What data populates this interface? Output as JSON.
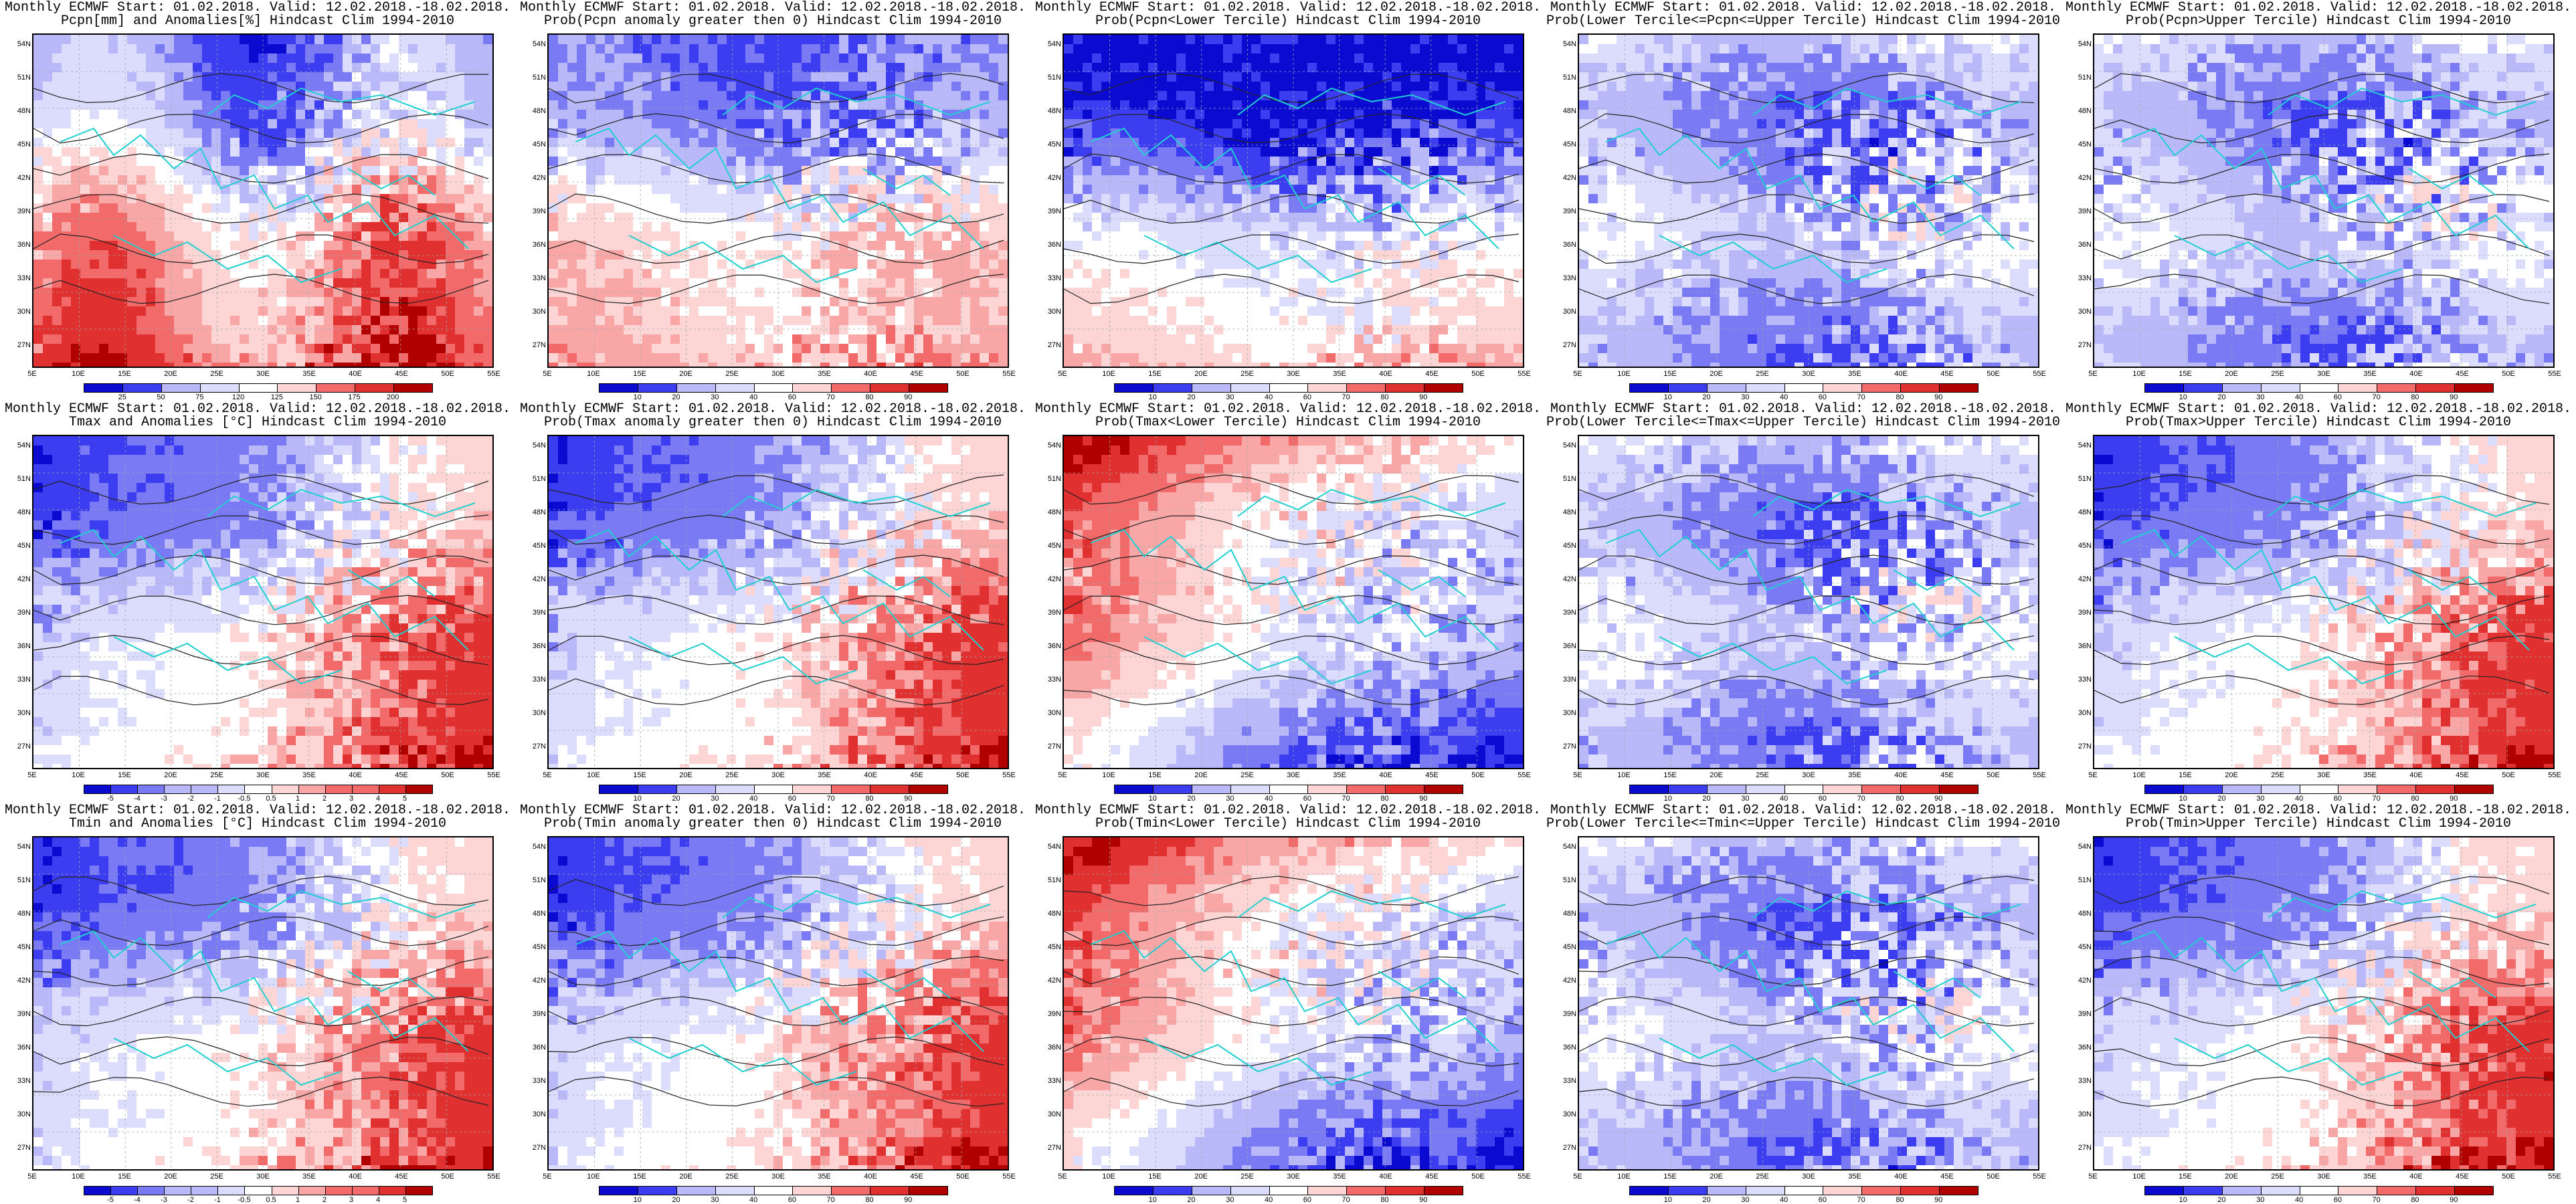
{
  "panels": [
    {
      "title1": "Monthly ECMWF Start: 01.02.2018. Valid: 12.02.2018.-18.02.2018.",
      "title2": "Pcpn[mm] and Anomalies[%] Hindcast Clim 1994-2010",
      "scheme": "anom",
      "colorbar": [
        "25",
        "50",
        "75",
        "120",
        "125",
        "150",
        "175",
        "200"
      ]
    },
    {
      "title1": "Monthly ECMWF Start: 01.02.2018. Valid: 12.02.2018.-18.02.2018.",
      "title2": "Prob(Pcpn anomaly greater then 0) Hindcast Clim 1994-2010",
      "scheme": "probwarm",
      "colorbar": [
        "10",
        "20",
        "30",
        "40",
        "60",
        "70",
        "80",
        "90"
      ]
    },
    {
      "title1": "Monthly ECMWF Start: 01.02.2018. Valid: 12.02.2018.-18.02.2018.",
      "title2": "Prob(Pcpn<Lower Tercile) Hindcast Clim 1994-2010",
      "scheme": "probcold",
      "colorbar": [
        "10",
        "20",
        "30",
        "40",
        "60",
        "70",
        "80",
        "90"
      ]
    },
    {
      "title1": "Monthly ECMWF Start: 01.02.2018. Valid: 12.02.2018.-18.02.2018.",
      "title2": "Prob(Lower Tercile<=Pcpn<=Upper Tercile) Hindcast Clim 1994-2010",
      "scheme": "mid",
      "colorbar": [
        "10",
        "20",
        "30",
        "40",
        "60",
        "70",
        "80",
        "90"
      ]
    },
    {
      "title1": "Monthly ECMWF Start: 01.02.2018. Valid: 12.02.2018.-18.02.2018.",
      "title2": "Prob(Pcpn>Upper Tercile) Hindcast Clim 1994-2010",
      "scheme": "mid",
      "colorbar": [
        "10",
        "20",
        "30",
        "40",
        "60",
        "70",
        "80",
        "90"
      ]
    },
    {
      "title1": "Monthly ECMWF Start: 01.02.2018. Valid: 12.02.2018.-18.02.2018.",
      "title2": "Tmax and Anomalies [°C] Hindcast Clim 1994-2010",
      "scheme": "warm",
      "colorbar": [
        "-5",
        "-4",
        "-3",
        "-2",
        "-1",
        "-0.5",
        "0.5",
        "1",
        "2",
        "3",
        "4",
        "5"
      ]
    },
    {
      "title1": "Monthly ECMWF Start: 01.02.2018. Valid: 12.02.2018.-18.02.2018.",
      "title2": "Prob(Tmax anomaly greater then 0) Hindcast Clim 1994-2010",
      "scheme": "warm",
      "colorbar": [
        "10",
        "20",
        "30",
        "40",
        "60",
        "70",
        "80",
        "90"
      ]
    },
    {
      "title1": "Monthly ECMWF Start: 01.02.2018. Valid: 12.02.2018.-18.02.2018.",
      "title2": "Prob(Tmax<Lower Tercile) Hindcast Clim 1994-2010",
      "scheme": "cold",
      "colorbar": [
        "10",
        "20",
        "30",
        "40",
        "60",
        "70",
        "80",
        "90"
      ]
    },
    {
      "title1": "Monthly ECMWF Start: 01.02.2018. Valid: 12.02.2018.-18.02.2018.",
      "title2": "Prob(Lower Tercile<=Tmax<=Upper Tercile) Hindcast Clim 1994-2010",
      "scheme": "mid",
      "colorbar": [
        "10",
        "20",
        "30",
        "40",
        "60",
        "70",
        "80",
        "90"
      ]
    },
    {
      "title1": "Monthly ECMWF Start: 01.02.2018. Valid: 12.02.2018.-18.02.2018.",
      "title2": "Prob(Tmax>Upper Tercile) Hindcast Clim 1994-2010",
      "scheme": "warm",
      "colorbar": [
        "10",
        "20",
        "30",
        "40",
        "60",
        "70",
        "80",
        "90"
      ]
    },
    {
      "title1": "Monthly ECMWF Start: 01.02.2018. Valid: 12.02.2018.-18.02.2018.",
      "title2": "Tmin and Anomalies [°C] Hindcast Clim 1994-2010",
      "scheme": "warm",
      "colorbar": [
        "-5",
        "-4",
        "-3",
        "-2",
        "-1",
        "-0.5",
        "0.5",
        "1",
        "2",
        "3",
        "4",
        "5"
      ]
    },
    {
      "title1": "Monthly ECMWF Start: 01.02.2018. Valid: 12.02.2018.-18.02.2018.",
      "title2": "Prob(Tmin anomaly greater then 0) Hindcast Clim 1994-2010",
      "scheme": "warm",
      "colorbar": [
        "10",
        "20",
        "30",
        "40",
        "60",
        "70",
        "80",
        "90"
      ]
    },
    {
      "title1": "Monthly ECMWF Start: 01.02.2018. Valid: 12.02.2018.-18.02.2018.",
      "title2": "Prob(Tmin<Lower Tercile) Hindcast Clim 1994-2010",
      "scheme": "cold",
      "colorbar": [
        "10",
        "20",
        "30",
        "40",
        "60",
        "70",
        "80",
        "90"
      ]
    },
    {
      "title1": "Monthly ECMWF Start: 01.02.2018. Valid: 12.02.2018.-18.02.2018.",
      "title2": "Prob(Lower Tercile<=Tmin<=Upper Tercile) Hindcast Clim 1994-2010",
      "scheme": "mid",
      "colorbar": [
        "10",
        "20",
        "30",
        "40",
        "60",
        "70",
        "80",
        "90"
      ]
    },
    {
      "title1": "Monthly ECMWF Start: 01.02.2018. Valid: 12.02.2018.-18.02.2018.",
      "title2": "Prob(Tmin>Upper Tercile) Hindcast Clim 1994-2010",
      "scheme": "warm",
      "colorbar": [
        "10",
        "20",
        "30",
        "40",
        "60",
        "70",
        "80",
        "90"
      ]
    }
  ],
  "lat_labels": [
    "54N",
    "51N",
    "48N",
    "45N",
    "42N",
    "39N",
    "36N",
    "33N",
    "30N",
    "27N"
  ],
  "lon_labels": [
    "5E",
    "10E",
    "15E",
    "20E",
    "25E",
    "30E",
    "35E",
    "40E",
    "45E",
    "50E",
    "55E"
  ],
  "colors": {
    "deep_blue": "#0a0ad0",
    "blue": "#3c3cf0",
    "mid_blue": "#7a7af5",
    "light_blue": "#b9b9fa",
    "pale_blue": "#dcdcfd",
    "white": "#ffffff",
    "pale_red": "#fdd5d5",
    "light_red": "#f9a6a6",
    "mid_red": "#f26a6a",
    "red": "#e03030",
    "deep_red": "#b00000",
    "coast": "#20d0d0",
    "contour": "#222222"
  }
}
